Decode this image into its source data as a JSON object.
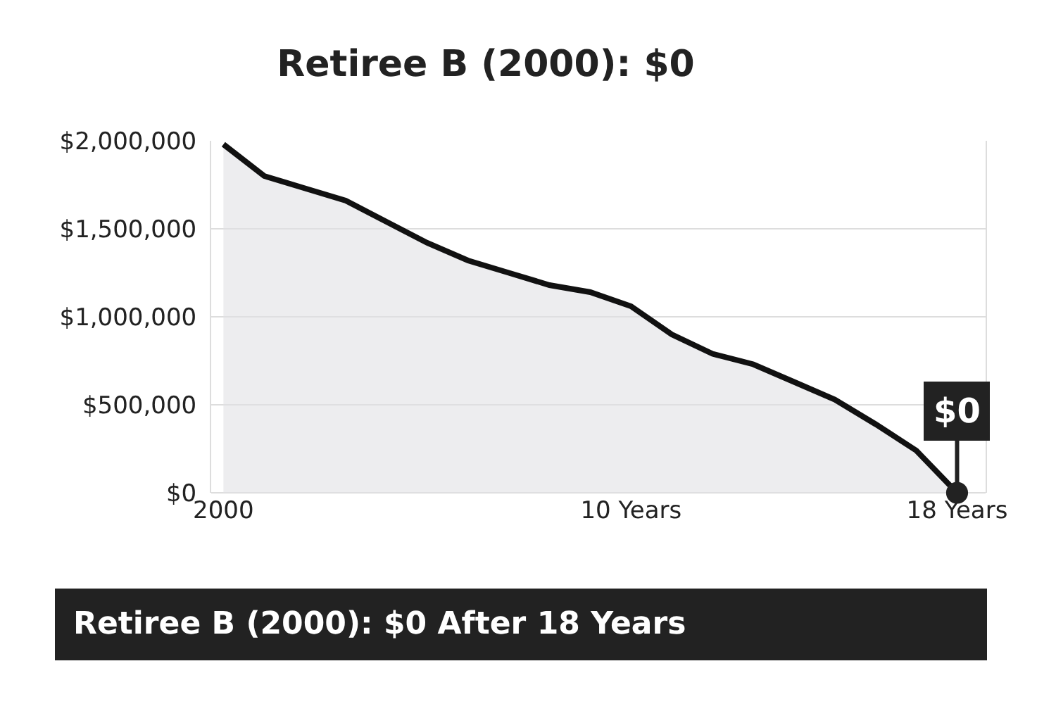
{
  "chart_data": {
    "type": "area",
    "title": "Retiree B (2000): $0",
    "categories": [
      "2000",
      null,
      null,
      null,
      null,
      null,
      null,
      null,
      null,
      null,
      "10 Years",
      null,
      null,
      null,
      null,
      null,
      null,
      null,
      "18 Years"
    ],
    "series": [
      {
        "color": "#111111",
        "values": [
          1980000,
          1800000,
          1730000,
          1660000,
          1540000,
          1420000,
          1320000,
          1250000,
          1180000,
          1140000,
          1060000,
          900000,
          790000,
          730000,
          630000,
          530000,
          390000,
          240000,
          0
        ]
      }
    ],
    "ylim": [
      0,
      2000000
    ],
    "yticks": [
      {
        "value": 0,
        "label": "$0"
      },
      {
        "value": 500000,
        "label": "$500,000"
      },
      {
        "value": 1000000,
        "label": "$1,000,000"
      },
      {
        "value": 1500000,
        "label": "$1,500,000"
      },
      {
        "value": 2000000,
        "label": "$2,000,000"
      }
    ],
    "grid": "y",
    "annotations": [
      {
        "text": "$0",
        "x": "18 Years",
        "y": 0
      },
      "Retiree B (2000): $0 After 18 Years"
    ]
  }
}
